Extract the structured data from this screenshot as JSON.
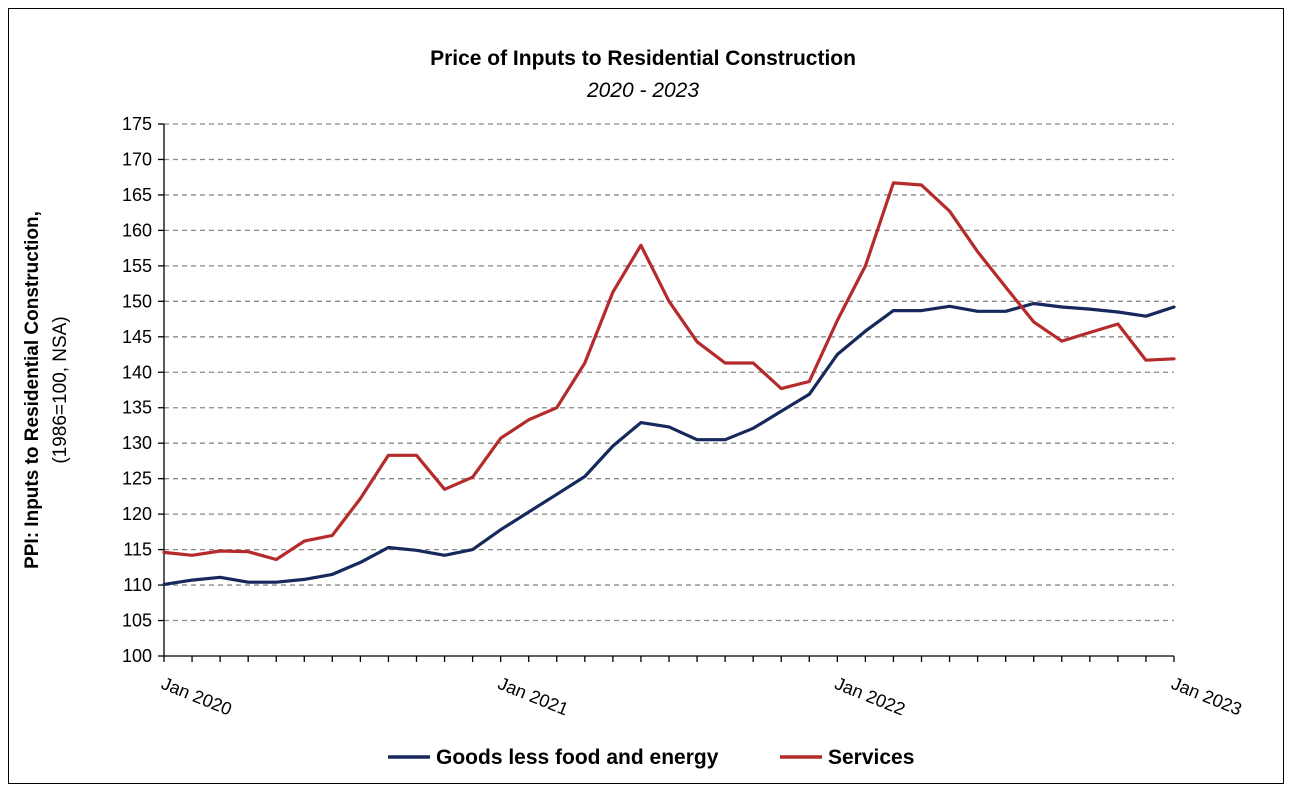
{
  "chart_data": {
    "type": "line",
    "title": "Price of Inputs to Residential Construction",
    "subtitle": "2020 - 2023",
    "ylabel_line1": "PPI: Inputs to Residential Construction,",
    "ylabel_line2": "(1986=100, NSA)",
    "xlabel": "",
    "ylim": [
      100,
      175
    ],
    "yticks": [
      100,
      105,
      110,
      115,
      120,
      125,
      130,
      135,
      140,
      145,
      150,
      155,
      160,
      165,
      170,
      175
    ],
    "x_range": [
      0,
      36
    ],
    "x_tick_labels": [
      {
        "x": 0,
        "label": "Jan 2020"
      },
      {
        "x": 12,
        "label": "Jan 2021"
      },
      {
        "x": 24,
        "label": "Jan 2022"
      },
      {
        "x": 36,
        "label": "Jan 2023"
      }
    ],
    "grid": "horizontal-dashed",
    "legend_position": "bottom",
    "series": [
      {
        "name": "Goods less food and energy",
        "color": "#16285c",
        "values": [
          110.1,
          110.7,
          111.1,
          110.4,
          110.4,
          110.8,
          111.5,
          113.2,
          115.3,
          114.9,
          114.2,
          115.0,
          117.8,
          120.3,
          122.8,
          125.3,
          129.6,
          132.9,
          132.3,
          130.5,
          130.5,
          132.1,
          134.5,
          136.9,
          142.5,
          145.8,
          148.7,
          148.7,
          149.3,
          148.6,
          148.6,
          149.7,
          149.2,
          148.9,
          148.5,
          147.9,
          149.2
        ]
      },
      {
        "name": "Services",
        "color": "#b52a2a",
        "values": [
          114.6,
          114.2,
          114.8,
          114.7,
          113.6,
          116.2,
          117.0,
          122.2,
          128.3,
          128.3,
          123.5,
          125.2,
          130.7,
          133.3,
          135.0,
          141.3,
          151.3,
          157.9,
          150.0,
          144.3,
          141.3,
          141.3,
          137.7,
          138.7,
          147.3,
          155.0,
          166.7,
          166.4,
          162.7,
          157.0,
          152.0,
          147.1,
          144.4,
          145.6,
          146.8,
          141.7,
          141.9
        ]
      }
    ]
  }
}
